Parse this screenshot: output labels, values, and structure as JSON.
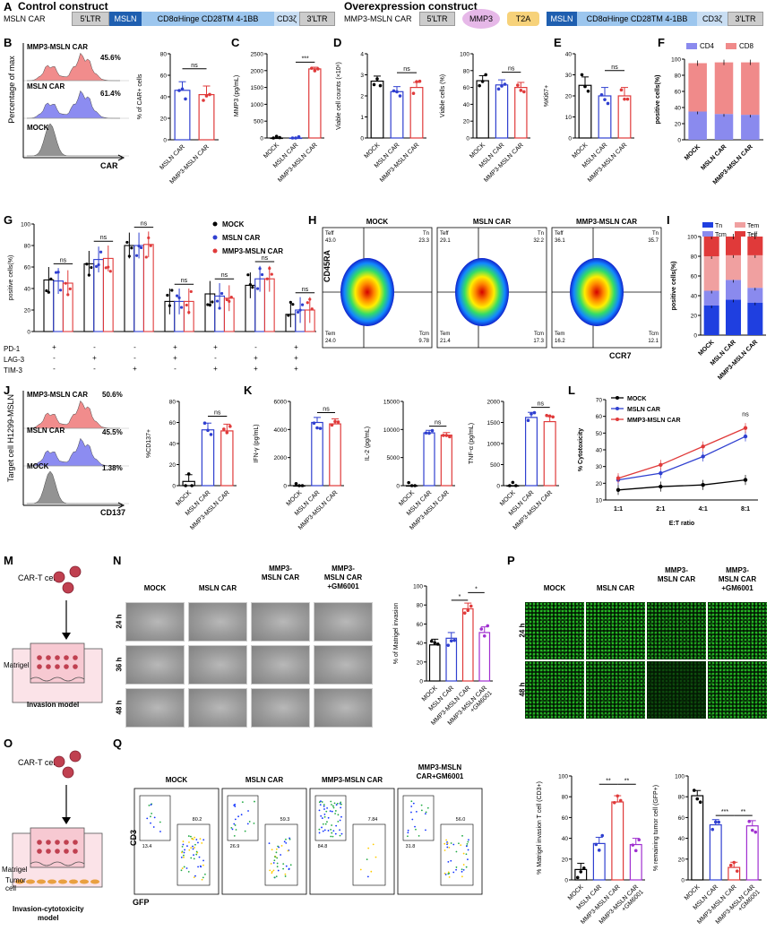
{
  "section_a": {
    "panel": "A",
    "control_title": "Control construct",
    "overexpr_title": "Overexpression construct",
    "control_name": "MSLN CAR",
    "overexpr_name": "MMP3-MSLN CAR",
    "ltr5": "5'LTR",
    "ltr3": "3'LTR",
    "msln": "MSLN",
    "hinge": "CD8αHinge CD28TM 4-1BB",
    "cd3z": "CD3ζ",
    "mmp3": "MMP3",
    "t2a": "T2A"
  },
  "panel_b": {
    "label": "B",
    "ylabel": "Percentage of max",
    "xlabel": "CAR",
    "hist": [
      {
        "name": "MMP3-MSLN CAR",
        "pct": "45.6%",
        "color": "#f08080"
      },
      {
        "name": "MSLN CAR",
        "pct": "61.4%",
        "color": "#8080f0"
      },
      {
        "name": "MOCK",
        "pct": "",
        "color": "#888888"
      }
    ],
    "bar_ylabel": "% of CAR+ cells",
    "bar_sig": "ns"
  },
  "panel_c": {
    "label": "C",
    "ylabel": "MMP3 (pg/mL)",
    "sig": "***"
  },
  "panel_d": {
    "label": "D",
    "ylabel1": "Viable cell counts (×10⁶)",
    "ylabel2": "Viable cells (%)",
    "sig": "ns"
  },
  "panel_e": {
    "label": "E",
    "ylabel": "%Ki67+",
    "sig": "ns"
  },
  "panel_f": {
    "label": "F",
    "ylabel": "positive cells(%)",
    "legend": [
      "CD4",
      "CD8"
    ],
    "colors": [
      "#8a8aee",
      "#f08a8a"
    ]
  },
  "panel_g": {
    "label": "G",
    "ylabel": "positive cells(%)",
    "legend": [
      "MOCK",
      "MSLN CAR",
      "MMP3-MSLN CAR"
    ],
    "row_labels": [
      "PD-1",
      "LAG-3",
      "TIM-3"
    ],
    "signs": [
      [
        "+",
        "-",
        "-",
        "+",
        "+",
        "-",
        "+"
      ],
      [
        "-",
        "+",
        "-",
        "+",
        "-",
        "+",
        "+"
      ],
      [
        "-",
        "-",
        "+",
        "-",
        "+",
        "+",
        "+"
      ]
    ],
    "sig": "ns"
  },
  "panel_h": {
    "label": "H",
    "groups": [
      {
        "name": "MOCK",
        "teff": "43.0",
        "tn": "23.3",
        "tem": "24.0",
        "tcm": "9.78"
      },
      {
        "name": "MSLN CAR",
        "teff": "29.1",
        "tn": "32.2",
        "tem": "21.4",
        "tcm": "17.3"
      },
      {
        "name": "MMP3-MSLN CAR",
        "teff": "36.1",
        "tn": "35.7",
        "tem": "16.2",
        "tcm": "12.1"
      }
    ],
    "q_teff": "Teff",
    "q_tn": "Tn",
    "q_tem": "Tem",
    "q_tcm": "Tcm",
    "ylabel": "CD45RA",
    "xlabel": "CCR7"
  },
  "panel_i": {
    "label": "I",
    "ylabel": "positive cells(%)",
    "legend": [
      "Tn",
      "Tem",
      "Tcm",
      "Teff"
    ],
    "colors": [
      "#1f3fe0",
      "#f0a0a0",
      "#8a8aee",
      "#e03a3a"
    ]
  },
  "panel_j": {
    "label": "J",
    "ylabel": "Target cell H1299-MSLN",
    "xlabel": "CD137",
    "hist": [
      {
        "name": "MMP3-MSLN CAR",
        "pct": "50.6%",
        "color": "#f08080"
      },
      {
        "name": "MSLN CAR",
        "pct": "45.5%",
        "color": "#8080f0"
      },
      {
        "name": "MOCK",
        "pct": "1.38%",
        "color": "#888888"
      }
    ],
    "bar_ylabel": "%CD137+",
    "sig": "ns"
  },
  "panel_k": {
    "label": "K",
    "ylabel1": "IFN-γ (pg/mL)",
    "ylabel2": "IL-2 (pg/mL)",
    "ylabel3": "TNF-α (pg/mL)",
    "sig": "ns"
  },
  "panel_l": {
    "label": "L",
    "ylabel": "% Cytotoxicity",
    "xlabel": "E:T ratio",
    "legend": [
      "MOCK",
      "MSLN CAR",
      "MMP3-MSLN CAR"
    ],
    "sig": "ns"
  },
  "panel_m": {
    "label": "M",
    "cell": "CAR-T cell",
    "matrigel": "Matrigel",
    "model": "Invasion model"
  },
  "panel_n": {
    "label": "N",
    "cols": [
      "MOCK",
      "MSLN CAR",
      "MMP3-\nMSLN CAR",
      "MMP3-\nMSLN CAR\n+GM6001"
    ],
    "rows": [
      "24 h",
      "36 h",
      "48 h"
    ],
    "bar_ylabel": "% of Matrigel invasion",
    "sig1": "*",
    "sig2": "*"
  },
  "panel_o": {
    "label": "O",
    "cell": "CAR-T cell",
    "matrigel": "Matrigel",
    "tumor": "Tumor\ncell",
    "model": "Invasion-cytotoxicity\nmodel"
  },
  "panel_p": {
    "label": "P",
    "cols": [
      "MOCK",
      "MSLN CAR",
      "MMP3-\nMSLN CAR",
      "MMP3-\nMSLN CAR\n+GM6001"
    ],
    "rows": [
      "24 h",
      "48 h"
    ]
  },
  "panel_q": {
    "label": "Q",
    "groups": [
      {
        "name": "MOCK",
        "ul": "",
        "ur": "80.2",
        "ll": "13.4"
      },
      {
        "name": "MSLN CAR",
        "ul": "",
        "ur": "59.3",
        "ll": "26.9"
      },
      {
        "name": "MMP3-MSLN CAR",
        "ul": "",
        "ur": "7.84",
        "ll": "84.8"
      },
      {
        "name": "MMP3-MSLN\nCAR+GM6001",
        "ul": "",
        "ur": "56.0",
        "ll": "31.8"
      }
    ],
    "ylabel": "CD3",
    "xlabel": "GFP",
    "bar1_ylabel": "% Matrigel invasion T cell (CD3+)",
    "bar2_ylabel": "% remaining tumor cell (GFP+)",
    "sig": "**",
    "sig3": "***"
  },
  "groups3": [
    "MOCK",
    "MSLN CAR",
    "MMP3-MSLN CAR"
  ],
  "groups2": [
    "MSLN CAR",
    "MMP3-MSLN CAR"
  ],
  "groups4": [
    "MOCK",
    "MSLN CAR",
    "MMP3-MSLN CAR",
    "MMP3-MSLN CAR\n+GM6001"
  ],
  "colors": {
    "mock": "#000000",
    "msln": "#3040d0",
    "mmp3": "#e03a3a",
    "gm": "#a030d0"
  },
  "chart_data": [
    {
      "type": "bar",
      "id": "B",
      "categories": [
        "MSLN CAR",
        "MMP3-MSLN CAR"
      ],
      "values": [
        46,
        42
      ],
      "ylim": [
        0,
        80
      ],
      "yticks": [
        0,
        20,
        40,
        60,
        80
      ]
    },
    {
      "type": "bar",
      "id": "C",
      "categories": [
        "MOCK",
        "MSLN CAR",
        "MMP3-MSLN CAR"
      ],
      "values": [
        0,
        0,
        2050
      ],
      "ylim": [
        0,
        2500
      ],
      "yticks": [
        0,
        500,
        1000,
        1500,
        2000,
        2500
      ]
    },
    {
      "type": "bar",
      "id": "D1",
      "categories": [
        "MOCK",
        "MSLN CAR",
        "MMP3-MSLN CAR"
      ],
      "values": [
        2.7,
        2.2,
        2.4
      ],
      "ylim": [
        0,
        4
      ],
      "yticks": [
        0,
        1,
        2,
        3,
        4
      ]
    },
    {
      "type": "bar",
      "id": "D2",
      "categories": [
        "MOCK",
        "MSLN CAR",
        "MMP3-MSLN CAR"
      ],
      "values": [
        68,
        63,
        60
      ],
      "ylim": [
        0,
        100
      ],
      "yticks": [
        0,
        20,
        40,
        60,
        80,
        100
      ]
    },
    {
      "type": "bar",
      "id": "E",
      "categories": [
        "MOCK",
        "MSLN CAR",
        "MMP3-MSLN CAR"
      ],
      "values": [
        25,
        20,
        20
      ],
      "ylim": [
        0,
        40
      ],
      "yticks": [
        0,
        10,
        20,
        30,
        40
      ]
    },
    {
      "type": "bar",
      "id": "F",
      "categories": [
        "MOCK",
        "MSLN CAR",
        "MMP3-MSLN CAR"
      ],
      "series": [
        {
          "name": "CD4",
          "values": [
            35,
            32,
            31
          ]
        },
        {
          "name": "CD8",
          "values": [
            60,
            64,
            65
          ]
        }
      ],
      "ylim": [
        0,
        100
      ],
      "yticks": [
        0,
        20,
        40,
        60,
        80,
        100
      ]
    },
    {
      "type": "bar",
      "id": "G",
      "categories": [
        "PD-1",
        "LAG-3",
        "TIM-3",
        "PD-1+LAG-3",
        "PD-1+TIM-3",
        "LAG-3+TIM-3",
        "PD-1+LAG-3+TIM-3"
      ],
      "series": [
        {
          "name": "MOCK",
          "values": [
            48,
            63,
            80,
            28,
            35,
            43,
            16
          ]
        },
        {
          "name": "MSLN CAR",
          "values": [
            47,
            67,
            80,
            28,
            33,
            49,
            20
          ]
        },
        {
          "name": "MMP3-MSLN CAR",
          "values": [
            45,
            68,
            81,
            28,
            31,
            49,
            20
          ]
        }
      ],
      "ylim": [
        0,
        100
      ],
      "yticks": [
        0,
        20,
        40,
        60,
        80,
        100
      ]
    },
    {
      "type": "bar",
      "id": "I",
      "categories": [
        "MOCK",
        "MSLN CAR",
        "MMP3-MSLN CAR"
      ],
      "series": [
        {
          "name": "Tn",
          "values": [
            30,
            36,
            33
          ]
        },
        {
          "name": "Tcm",
          "values": [
            15,
            20,
            15
          ]
        },
        {
          "name": "Tem",
          "values": [
            35,
            25,
            33
          ]
        },
        {
          "name": "Teff",
          "values": [
            20,
            19,
            19
          ]
        }
      ],
      "ylim": [
        0,
        100
      ],
      "yticks": [
        0,
        20,
        40,
        60,
        80,
        100
      ]
    },
    {
      "type": "bar",
      "id": "J",
      "categories": [
        "MOCK",
        "MSLN CAR",
        "MMP3-MSLN CAR"
      ],
      "values": [
        4,
        53,
        52
      ],
      "ylim": [
        0,
        80
      ],
      "yticks": [
        0,
        20,
        40,
        60,
        80
      ]
    },
    {
      "type": "bar",
      "id": "K1",
      "categories": [
        "MOCK",
        "MSLN CAR",
        "MMP3-MSLN CAR"
      ],
      "values": [
        0,
        4500,
        4400
      ],
      "ylim": [
        0,
        6000
      ],
      "yticks": [
        0,
        2000,
        4000,
        6000
      ]
    },
    {
      "type": "bar",
      "id": "K2",
      "categories": [
        "MOCK",
        "MSLN CAR",
        "MMP3-MSLN CAR"
      ],
      "values": [
        0,
        9400,
        9000
      ],
      "ylim": [
        0,
        15000
      ],
      "yticks": [
        0,
        5000,
        10000,
        15000
      ]
    },
    {
      "type": "bar",
      "id": "K3",
      "categories": [
        "MOCK",
        "MSLN CAR",
        "MMP3-MSLN CAR"
      ],
      "values": [
        0,
        1620,
        1520
      ],
      "ylim": [
        0,
        2000
      ],
      "yticks": [
        0,
        500,
        1000,
        1500,
        2000
      ]
    },
    {
      "type": "line",
      "id": "L",
      "x": [
        "1:1",
        "2:1",
        "4:1",
        "8:1"
      ],
      "series": [
        {
          "name": "MOCK",
          "values": [
            16,
            18,
            19,
            22
          ]
        },
        {
          "name": "MSLN CAR",
          "values": [
            22,
            26,
            36,
            48
          ]
        },
        {
          "name": "MMP3-MSLN CAR",
          "values": [
            23,
            31,
            42,
            53
          ]
        }
      ],
      "ylim": [
        10,
        70
      ],
      "yticks": [
        10,
        20,
        30,
        40,
        50,
        60,
        70
      ],
      "xlabel": "E:T ratio",
      "ylabel": "% Cytotoxicity"
    },
    {
      "type": "bar",
      "id": "N",
      "categories": [
        "MOCK",
        "MSLN CAR",
        "MMP3-MSLN CAR",
        "MMP3-MSLN CAR +GM6001"
      ],
      "values": [
        38,
        45,
        76,
        51
      ],
      "ylim": [
        0,
        100
      ],
      "yticks": [
        0,
        20,
        40,
        60,
        80,
        100
      ]
    },
    {
      "type": "bar",
      "id": "Q1",
      "categories": [
        "MOCK",
        "MSLN CAR",
        "MMP3-MSLN CAR",
        "MMP3-MSLN CAR +GM6001"
      ],
      "values": [
        10,
        35,
        75,
        34
      ],
      "ylim": [
        0,
        100
      ],
      "yticks": [
        0,
        20,
        40,
        60,
        80,
        100
      ]
    },
    {
      "type": "bar",
      "id": "Q2",
      "categories": [
        "MOCK",
        "MSLN CAR",
        "MMP3-MSLN CAR",
        "MMP3-MSLN CAR +GM6001"
      ],
      "values": [
        81,
        53,
        12,
        52
      ],
      "ylim": [
        0,
        100
      ],
      "yticks": [
        0,
        20,
        40,
        60,
        80,
        100
      ]
    }
  ]
}
